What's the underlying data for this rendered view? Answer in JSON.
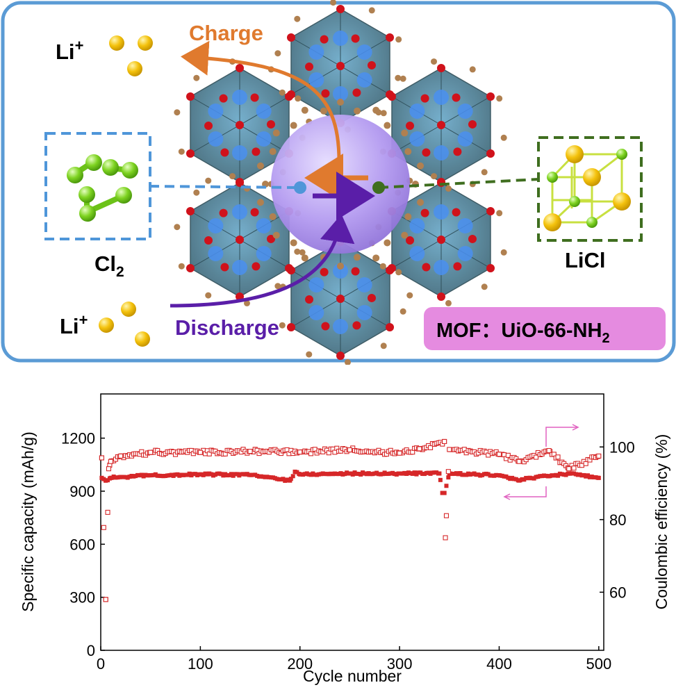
{
  "scene": {
    "charge_label": "Charge",
    "discharge_label": "Discharge",
    "li_top": "Li",
    "li_bottom": "Li",
    "li_charge": "+",
    "cl2_label": "Cl",
    "cl2_sub": "2",
    "licl_label": "LiCl",
    "mof_label": "MOF：UiO-66-NH",
    "mof_sub": "2",
    "colors": {
      "frame": "#5b9bd5",
      "charge": "#e07a2e",
      "discharge": "#5a1ea8",
      "cl2_box": "#4f96d9",
      "licl_box": "#3f6e1f",
      "mof_badge": "#e58be0",
      "li_ion": "#f4c20d",
      "cl_atom": "#7ed321",
      "pore": "#b39af0",
      "cluster": "#4d7a8a"
    },
    "icons": [
      "li-ion-sphere",
      "cl2-molecule",
      "licl-crystal-cell",
      "mof-framework",
      "pore-sphere"
    ]
  },
  "chart_data": {
    "type": "scatter",
    "xlabel": "Cycle number",
    "ylabel_left": "Specific capacity (mAh/g)",
    "ylabel_right": "Coulombic efficiency (%)",
    "xlim": [
      0,
      505
    ],
    "ylim_left": [
      0,
      1450
    ],
    "ylim_right": [
      44,
      114.6
    ],
    "x_ticks": [
      0,
      100,
      200,
      300,
      400,
      500
    ],
    "y_left_ticks": [
      0,
      300,
      600,
      900,
      1200
    ],
    "y_right_ticks": [
      60,
      80,
      100
    ],
    "grid": false,
    "colors": {
      "series": "#d62728",
      "arrows": "#e060c0"
    },
    "series": [
      {
        "axis": "left",
        "marker": "filled-square",
        "cycles_range": [
          1,
          500
        ],
        "typical_value": 985,
        "x_sample": [
          1,
          5,
          10,
          20,
          50,
          100,
          150,
          190,
          195,
          200,
          250,
          300,
          340,
          343,
          345,
          350,
          400,
          420,
          430,
          450,
          470,
          500
        ],
        "values_sample": [
          975,
          960,
          975,
          980,
          990,
          995,
          992,
          960,
          1010,
          995,
          1000,
          1000,
          1000,
          890,
          890,
          1000,
          990,
          960,
          975,
          985,
          1000,
          975
        ]
      },
      {
        "axis": "right",
        "marker": "open-square",
        "cycles_range": [
          1,
          500
        ],
        "typical_value": 98.5,
        "x_sample": [
          1,
          5,
          8,
          10,
          20,
          50,
          100,
          150,
          200,
          250,
          300,
          320,
          345,
          346,
          350,
          400,
          420,
          450,
          470,
          500
        ],
        "values_sample": [
          97,
          58,
          94,
          96,
          97.5,
          98.5,
          98.5,
          98.8,
          98.6,
          99.2,
          98.3,
          99.5,
          101.5,
          75,
          99.3,
          98,
          96,
          99,
          94,
          97.5
        ]
      }
    ]
  }
}
